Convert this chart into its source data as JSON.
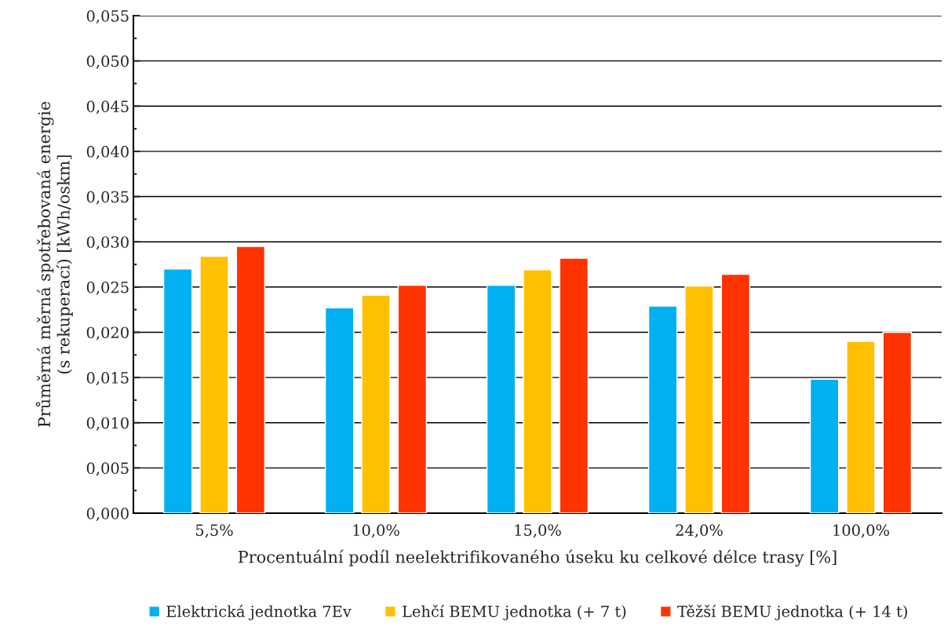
{
  "chart_data": {
    "type": "bar",
    "xlabel": "Procentuální podíl neelektrifikovaného úseku ku celkové délce trasy [%]",
    "ylabel": "Průměrná měrná spotřebovaná energie\n(s rekuperací) [kWh/oskm]",
    "categories": [
      "5,5%",
      "10,0%",
      "15,0%",
      "24,0%",
      "100,0%"
    ],
    "series": [
      {
        "name": "Elektrická jednotka 7Ev",
        "color": "#00b0f0",
        "values": [
          0.027,
          0.0227,
          0.0252,
          0.0229,
          0.0148
        ]
      },
      {
        "name": "Lehčí BEMU jednotka (+ 7 t)",
        "color": "#ffc000",
        "values": [
          0.0284,
          0.0241,
          0.0269,
          0.0251,
          0.019
        ]
      },
      {
        "name": "Těžší BEMU jednotka (+ 14 t)",
        "color": "#ff3300",
        "values": [
          0.0295,
          0.0252,
          0.0282,
          0.0264,
          0.02
        ]
      }
    ],
    "ylim": [
      0,
      0.055
    ],
    "yticks": [
      {
        "value": 0,
        "label": "0,000"
      },
      {
        "value": 0.005,
        "label": "0,005"
      },
      {
        "value": 0.01,
        "label": "0,010"
      },
      {
        "value": 0.015,
        "label": "0,015"
      },
      {
        "value": 0.02,
        "label": "0,020"
      },
      {
        "value": 0.025,
        "label": "0,025"
      },
      {
        "value": 0.03,
        "label": "0,030"
      },
      {
        "value": 0.035,
        "label": "0,035"
      },
      {
        "value": 0.04,
        "label": "0,040"
      },
      {
        "value": 0.045,
        "label": "0,045"
      },
      {
        "value": 0.05,
        "label": "0,050"
      },
      {
        "value": 0.055,
        "label": "0,055"
      }
    ],
    "grid": "y",
    "legend": "bottom"
  }
}
